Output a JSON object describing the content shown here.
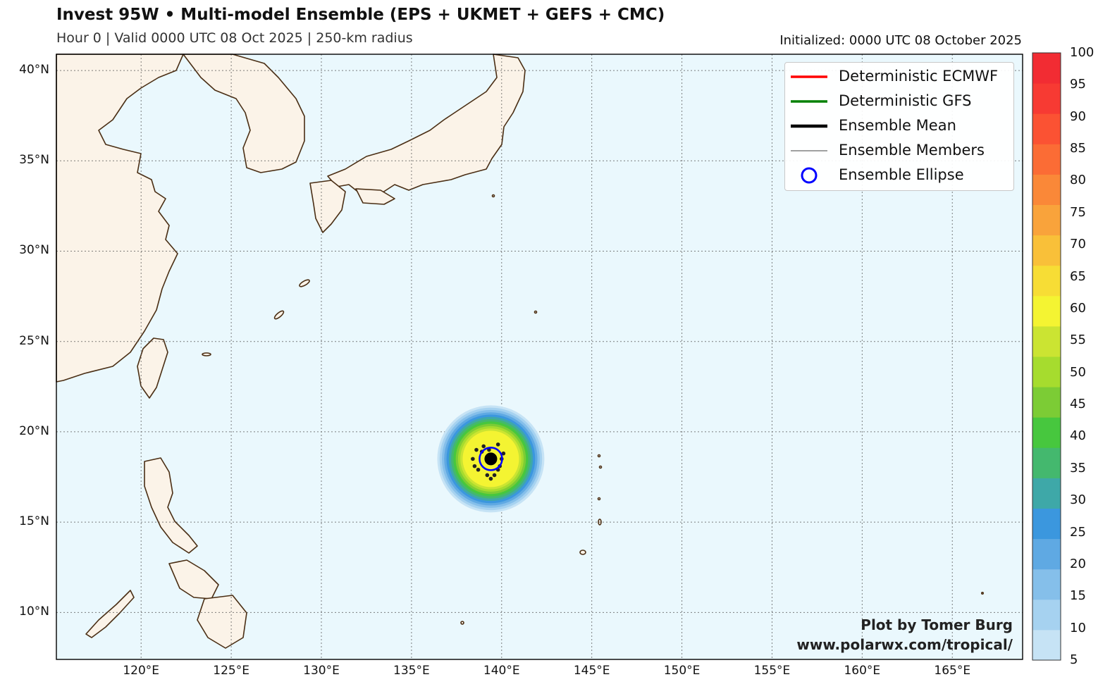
{
  "header": {
    "title": "Invest 95W • Multi-model Ensemble (EPS + UKMET + GEFS + CMC)",
    "subtitle": "Hour 0 | Valid 0000 UTC 08 Oct 2025 | 250-km radius",
    "initialized": "Initialized: 0000 UTC 08 October 2025"
  },
  "legend": {
    "items": [
      {
        "label": "Deterministic ECMWF",
        "style": "line",
        "color": "#ff0000"
      },
      {
        "label": "Deterministic GFS",
        "style": "line",
        "color": "#008000"
      },
      {
        "label": "Ensemble Mean",
        "style": "thickline",
        "color": "#000000"
      },
      {
        "label": "Ensemble Members",
        "style": "thinline",
        "color": "#000000"
      },
      {
        "label": "Ensemble Ellipse",
        "style": "circle",
        "color": "#0000ff"
      }
    ]
  },
  "credit": {
    "line1": "Plot by Tomer Burg",
    "line2": "www.polarwx.com/tropical/"
  },
  "axes": {
    "lon_ticks": [
      "120°E",
      "125°E",
      "130°E",
      "135°E",
      "140°E",
      "145°E",
      "150°E",
      "155°E",
      "160°E",
      "165°E"
    ],
    "lat_ticks": [
      "40°N",
      "35°N",
      "30°N",
      "25°N",
      "20°N",
      "15°N",
      "10°N"
    ],
    "lon_values": [
      120,
      125,
      130,
      135,
      140,
      145,
      150,
      155,
      160,
      165
    ],
    "lat_values": [
      40,
      35,
      30,
      25,
      20,
      15,
      10
    ],
    "lon_range": [
      115.3,
      168.9
    ],
    "lat_range": [
      7.4,
      40.9
    ]
  },
  "colorbar": {
    "labels": [
      "100",
      "95",
      "90",
      "85",
      "80",
      "75",
      "70",
      "65",
      "60",
      "55",
      "50",
      "45",
      "40",
      "35",
      "30",
      "25",
      "20",
      "15",
      "10",
      "5"
    ],
    "colors": [
      "#c6e3f5",
      "#a6d2f0",
      "#85bfea",
      "#5fa9e3",
      "#3b97de",
      "#3ea8a8",
      "#44b86e",
      "#47c73e",
      "#7ccc35",
      "#a6dc2e",
      "#cbe432",
      "#f4f432",
      "#f7dd35",
      "#f9c039",
      "#f9a33b",
      "#fa8838",
      "#fb6c35",
      "#fb5233",
      "#f73a33",
      "#f22c33"
    ]
  },
  "storm": {
    "center_lon": 139.4,
    "center_lat": 18.5,
    "probability_rings": [
      5,
      10,
      15,
      20,
      25,
      30,
      35,
      40,
      45,
      50,
      55,
      60
    ],
    "members": [
      [
        138.6,
        19.0
      ],
      [
        139.0,
        19.2
      ],
      [
        139.8,
        19.3
      ],
      [
        140.0,
        18.5
      ],
      [
        139.8,
        17.9
      ],
      [
        139.2,
        17.6
      ],
      [
        138.7,
        17.9
      ],
      [
        138.4,
        18.5
      ],
      [
        139.6,
        17.6
      ],
      [
        140.1,
        18.8
      ],
      [
        138.9,
        18.9
      ],
      [
        139.3,
        19.0
      ],
      [
        138.5,
        18.1
      ],
      [
        139.9,
        18.1
      ],
      [
        139.4,
        17.4
      ]
    ]
  }
}
